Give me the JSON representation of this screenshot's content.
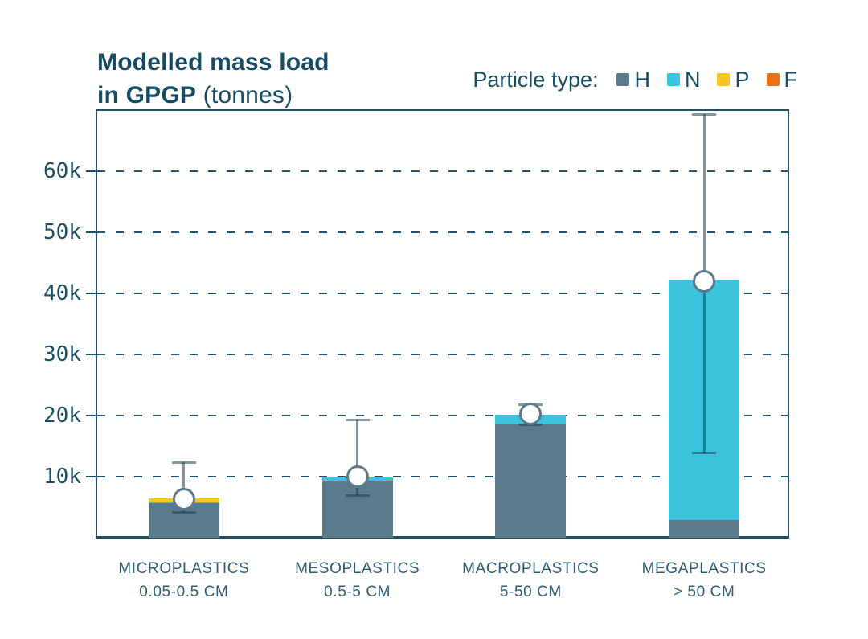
{
  "title": {
    "line1": "Modelled mass load",
    "line2_bold": "in GPGP",
    "line2_rest": " (tonnes)"
  },
  "legend": {
    "label": "Particle type:",
    "items": [
      {
        "label": "H",
        "color": "#5b7b8c"
      },
      {
        "label": "N",
        "color": "#3bc2dd"
      },
      {
        "label": "P",
        "color": "#f3c71f"
      },
      {
        "label": "F",
        "color": "#e8731a"
      }
    ]
  },
  "colors": {
    "title_text": "#174b63",
    "axis_text": "#1d4d63",
    "category_text": "#2d5d72",
    "plot_border": "#1f4e68",
    "gridline": "#2b506b",
    "error_bar": "rgba(23,68,90,0.55)",
    "marker_stroke": "#5b7a8a",
    "background": "#ffffff"
  },
  "chart_data": {
    "type": "bar",
    "stacked": true,
    "title": "Modelled mass load in GPGP (tonnes)",
    "unit": "tonnes",
    "legend_title": "Particle type:",
    "legend_position": "top-right",
    "grid": "dashed-horizontal",
    "categories": [
      {
        "name": "MICROPLASTICS",
        "size": "0.05-0.5 CM"
      },
      {
        "name": "MESOPLASTICS",
        "size": "0.5-5 CM"
      },
      {
        "name": "MACROPLASTICS",
        "size": "5-50 CM"
      },
      {
        "name": "MEGAPLASTICS",
        "size": "> 50 CM"
      }
    ],
    "series": [
      {
        "name": "H",
        "color": "#5b7b8c",
        "values": [
          5600,
          9300,
          18500,
          2900
        ]
      },
      {
        "name": "N",
        "color": "#3bc2dd",
        "values": [
          200,
          550,
          1700,
          39300
        ]
      },
      {
        "name": "P",
        "color": "#f3c71f",
        "values": [
          650,
          150,
          0,
          0
        ]
      },
      {
        "name": "F",
        "color": "#e8731a",
        "values": [
          0,
          0,
          0,
          0
        ]
      }
    ],
    "totals": [
      6450,
      10000,
      20200,
      42200
    ],
    "error_bars": {
      "point": [
        6300,
        10000,
        20300,
        42000
      ],
      "low": [
        4100,
        6800,
        18400,
        13800
      ],
      "high": [
        12400,
        19400,
        21800,
        69300
      ]
    },
    "y_axis": {
      "ticks": [
        10000,
        20000,
        30000,
        40000,
        50000,
        60000
      ],
      "tick_labels": [
        "10k",
        "20k",
        "30k",
        "40k",
        "50k",
        "60k"
      ],
      "min": 0,
      "max": 70300
    }
  }
}
